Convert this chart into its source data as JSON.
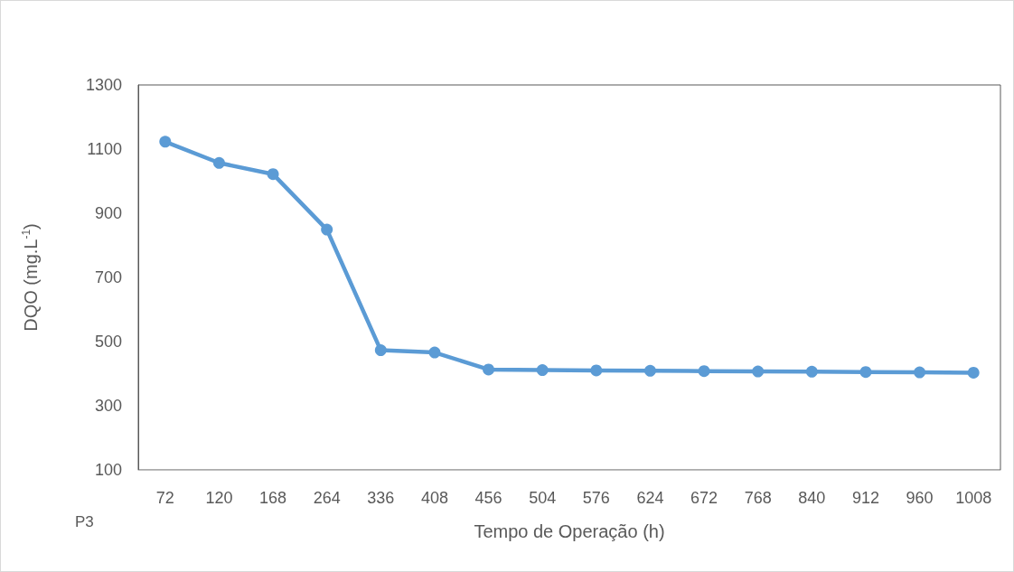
{
  "chart_data": {
    "type": "line",
    "xlabel": "Tempo de Operação (h)",
    "ylabel": "DQO (mg.L$^{-1}$)",
    "categories": [
      "72",
      "120",
      "168",
      "264",
      "336",
      "408",
      "456",
      "504",
      "576",
      "624",
      "672",
      "768",
      "840",
      "912",
      "960",
      "1008"
    ],
    "series": [
      {
        "color": "#5b9bd5",
        "values": [
          1123,
          1057,
          1022,
          849,
          473,
          466,
          413,
          411,
          410,
          409,
          408,
          407,
          406,
          405,
          404,
          403
        ]
      }
    ],
    "ylim": [
      100,
      1300
    ],
    "yticks": [
      100,
      300,
      500,
      700,
      900,
      1100,
      1300
    ],
    "grid": false,
    "marker": "circle",
    "line_style": "solid",
    "annotations": [
      "P3"
    ]
  }
}
